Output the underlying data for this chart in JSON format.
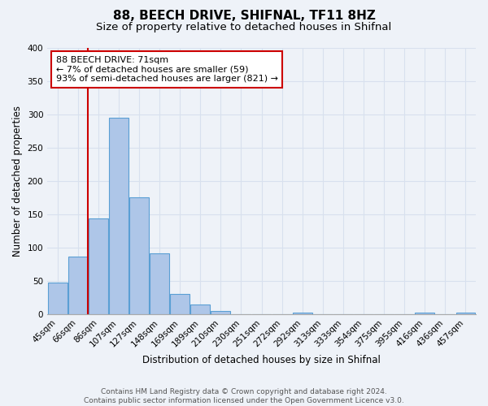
{
  "title": "88, BEECH DRIVE, SHIFNAL, TF11 8HZ",
  "subtitle": "Size of property relative to detached houses in Shifnal",
  "xlabel": "Distribution of detached houses by size in Shifnal",
  "ylabel": "Number of detached properties",
  "bar_labels": [
    "45sqm",
    "66sqm",
    "86sqm",
    "107sqm",
    "127sqm",
    "148sqm",
    "169sqm",
    "189sqm",
    "210sqm",
    "230sqm",
    "251sqm",
    "272sqm",
    "292sqm",
    "313sqm",
    "333sqm",
    "354sqm",
    "375sqm",
    "395sqm",
    "416sqm",
    "436sqm",
    "457sqm"
  ],
  "bar_values": [
    47,
    87,
    144,
    295,
    175,
    91,
    30,
    14,
    5,
    0,
    0,
    0,
    2,
    0,
    0,
    0,
    0,
    0,
    2,
    0,
    2
  ],
  "bar_color": "#aec6e8",
  "bar_edge_color": "#5a9fd4",
  "property_line_color": "#cc0000",
  "property_line_xindex": 1.5,
  "ylim": [
    0,
    400
  ],
  "yticks": [
    0,
    50,
    100,
    150,
    200,
    250,
    300,
    350,
    400
  ],
  "annotation_title": "88 BEECH DRIVE: 71sqm",
  "annotation_line1": "← 7% of detached houses are smaller (59)",
  "annotation_line2": "93% of semi-detached houses are larger (821) →",
  "annotation_box_color": "#ffffff",
  "annotation_border_color": "#cc0000",
  "footer_line1": "Contains HM Land Registry data © Crown copyright and database right 2024.",
  "footer_line2": "Contains public sector information licensed under the Open Government Licence v3.0.",
  "background_color": "#eef2f8",
  "grid_color": "#d8e0ee",
  "title_fontsize": 11,
  "subtitle_fontsize": 9.5,
  "axis_label_fontsize": 8.5,
  "tick_fontsize": 7.5,
  "annotation_fontsize": 8,
  "footer_fontsize": 6.5
}
